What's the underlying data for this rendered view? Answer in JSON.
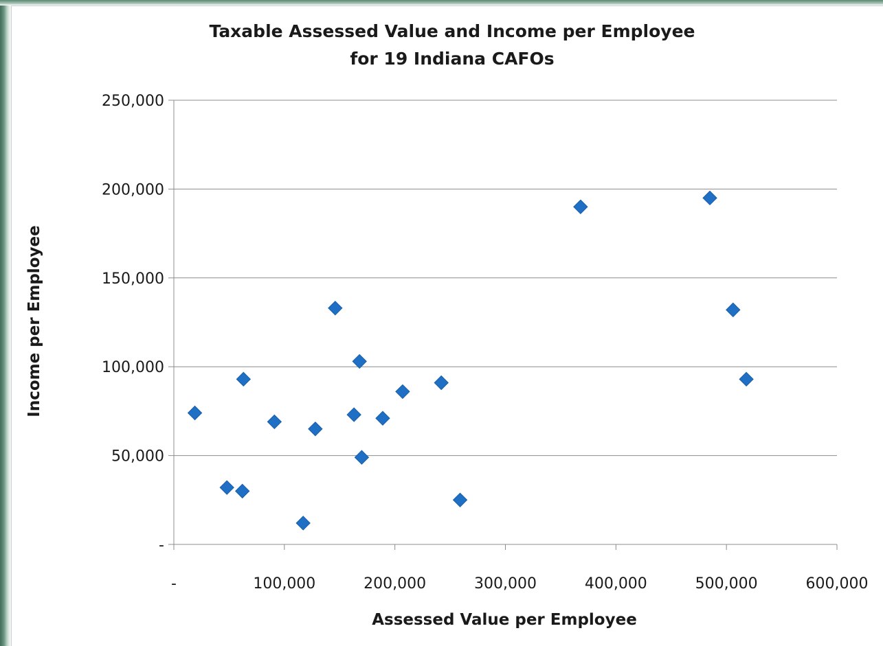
{
  "chart_data": {
    "type": "scatter",
    "title": "Taxable Assessed Value and Income per Employee",
    "subtitle": "for 19 Indiana CAFOs",
    "xlabel": "Assessed Value per Employee",
    "ylabel": "Income per Employee",
    "xlim": [
      0,
      600000
    ],
    "ylim": [
      0,
      250000
    ],
    "x_ticks": [
      0,
      100000,
      200000,
      300000,
      400000,
      500000,
      600000
    ],
    "y_ticks": [
      0,
      50000,
      100000,
      150000,
      200000,
      250000
    ],
    "x_tick_labels": [
      "-",
      "100,000",
      "200,000",
      "300,000",
      "400,000",
      "500,000",
      "600,000"
    ],
    "y_tick_labels": [
      "-",
      "50,000",
      "100,000",
      "150,000",
      "200,000",
      "250,000"
    ],
    "grid": "horizontal",
    "legend": "none",
    "marker": "diamond",
    "marker_color": "#1f6fc5",
    "points": [
      {
        "x": 19000,
        "y": 74000
      },
      {
        "x": 48000,
        "y": 32000
      },
      {
        "x": 62000,
        "y": 30000
      },
      {
        "x": 63000,
        "y": 93000
      },
      {
        "x": 91000,
        "y": 69000
      },
      {
        "x": 117000,
        "y": 12000
      },
      {
        "x": 128000,
        "y": 65000
      },
      {
        "x": 146000,
        "y": 133000
      },
      {
        "x": 163000,
        "y": 73000
      },
      {
        "x": 168000,
        "y": 103000
      },
      {
        "x": 170000,
        "y": 49000
      },
      {
        "x": 189000,
        "y": 71000
      },
      {
        "x": 207000,
        "y": 86000
      },
      {
        "x": 242000,
        "y": 91000
      },
      {
        "x": 259000,
        "y": 25000
      },
      {
        "x": 368000,
        "y": 190000
      },
      {
        "x": 485000,
        "y": 195000
      },
      {
        "x": 506000,
        "y": 132000
      },
      {
        "x": 518000,
        "y": 93000
      }
    ]
  }
}
